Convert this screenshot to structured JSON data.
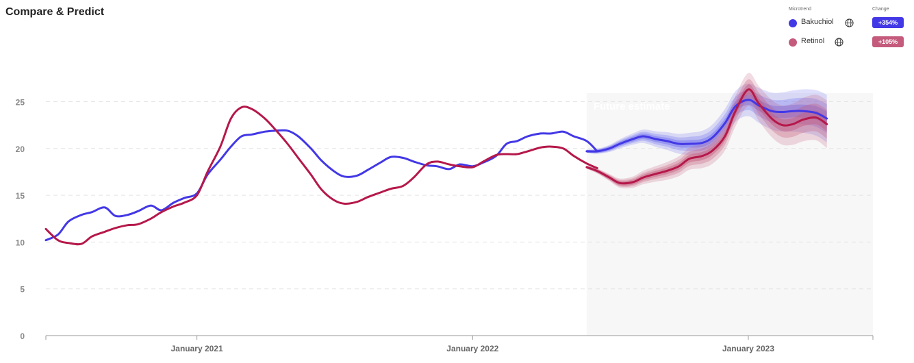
{
  "title": "Compare & Predict",
  "legend": {
    "col_trend": "Microtrend",
    "col_change": "Change",
    "items": [
      {
        "name": "Bakuchiol",
        "change": "+354%",
        "color": "#4338e6",
        "icon": "globe-icon"
      },
      {
        "name": "Retinol",
        "change": "+105%",
        "color": "#c45a7c",
        "icon": "globe-icon"
      }
    ]
  },
  "chart_data": {
    "type": "line",
    "title": "",
    "xlabel": "",
    "ylabel": "",
    "ylim": [
      0,
      25
    ],
    "yticks": [
      "0",
      "5",
      "10",
      "15",
      "20",
      "25"
    ],
    "xtick_labels": [
      "January 2021",
      "January 2022",
      "January 2023"
    ],
    "xtick_dates": [
      "2021-01-01",
      "2022-01-01",
      "2023-01-01"
    ],
    "xrange": [
      "2020-06-15",
      "2023-06-15"
    ],
    "grid": true,
    "future_estimate": {
      "label": "Future estimate",
      "start": "2022-06-01"
    },
    "series": [
      {
        "name": "Bakuchiol",
        "color": "#4338e6",
        "band_color": "#6e6ef0",
        "points": [
          [
            "2020-06-15",
            10.2
          ],
          [
            "2020-07-01",
            10.8
          ],
          [
            "2020-07-15",
            12.2
          ],
          [
            "2020-08-01",
            12.9
          ],
          [
            "2020-08-15",
            13.2
          ],
          [
            "2020-09-01",
            13.7
          ],
          [
            "2020-09-15",
            12.8
          ],
          [
            "2020-10-01",
            12.9
          ],
          [
            "2020-10-15",
            13.3
          ],
          [
            "2020-11-01",
            13.9
          ],
          [
            "2020-11-15",
            13.4
          ],
          [
            "2020-12-01",
            14.2
          ],
          [
            "2020-12-15",
            14.7
          ],
          [
            "2021-01-01",
            15.2
          ],
          [
            "2021-01-15",
            17.2
          ],
          [
            "2021-02-01",
            18.8
          ],
          [
            "2021-02-15",
            20.2
          ],
          [
            "2021-03-01",
            21.3
          ],
          [
            "2021-03-15",
            21.5
          ],
          [
            "2021-04-01",
            21.8
          ],
          [
            "2021-04-15",
            21.9
          ],
          [
            "2021-05-01",
            21.9
          ],
          [
            "2021-05-15",
            21.3
          ],
          [
            "2021-06-01",
            20.0
          ],
          [
            "2021-06-15",
            18.7
          ],
          [
            "2021-07-01",
            17.6
          ],
          [
            "2021-07-15",
            17.0
          ],
          [
            "2021-08-01",
            17.1
          ],
          [
            "2021-08-15",
            17.7
          ],
          [
            "2021-09-01",
            18.5
          ],
          [
            "2021-09-15",
            19.1
          ],
          [
            "2021-10-01",
            19.0
          ],
          [
            "2021-10-15",
            18.6
          ],
          [
            "2021-11-01",
            18.2
          ],
          [
            "2021-11-15",
            18.1
          ],
          [
            "2021-12-01",
            17.8
          ],
          [
            "2021-12-15",
            18.3
          ],
          [
            "2022-01-01",
            18.1
          ],
          [
            "2022-01-15",
            18.5
          ],
          [
            "2022-02-01",
            19.2
          ],
          [
            "2022-02-15",
            20.5
          ],
          [
            "2022-03-01",
            20.8
          ],
          [
            "2022-03-15",
            21.3
          ],
          [
            "2022-04-01",
            21.6
          ],
          [
            "2022-04-15",
            21.6
          ],
          [
            "2022-05-01",
            21.8
          ],
          [
            "2022-05-15",
            21.3
          ],
          [
            "2022-06-01",
            20.8
          ],
          [
            "2022-06-15",
            19.7
          ]
        ],
        "forecast": [
          [
            "2022-06-01",
            19.7
          ],
          [
            "2022-06-15",
            19.7
          ],
          [
            "2022-07-01",
            20.0
          ],
          [
            "2022-07-15",
            20.5
          ],
          [
            "2022-08-01",
            21.0
          ],
          [
            "2022-08-15",
            21.3
          ],
          [
            "2022-09-01",
            21.0
          ],
          [
            "2022-09-15",
            20.8
          ],
          [
            "2022-10-01",
            20.5
          ],
          [
            "2022-10-15",
            20.5
          ],
          [
            "2022-11-01",
            20.6
          ],
          [
            "2022-11-15",
            21.2
          ],
          [
            "2022-12-01",
            22.7
          ],
          [
            "2022-12-15",
            24.5
          ],
          [
            "2023-01-01",
            25.2
          ],
          [
            "2023-01-15",
            24.6
          ],
          [
            "2023-02-01",
            24.0
          ],
          [
            "2023-02-15",
            23.9
          ],
          [
            "2023-03-01",
            24.0
          ],
          [
            "2023-03-15",
            24.0
          ],
          [
            "2023-04-01",
            23.8
          ],
          [
            "2023-04-15",
            23.2
          ]
        ]
      },
      {
        "name": "Retinol",
        "color": "#b5184a",
        "band_color": "#c45a7c",
        "points": [
          [
            "2020-06-15",
            11.4
          ],
          [
            "2020-07-01",
            10.2
          ],
          [
            "2020-07-15",
            9.9
          ],
          [
            "2020-08-01",
            9.8
          ],
          [
            "2020-08-15",
            10.6
          ],
          [
            "2020-09-01",
            11.1
          ],
          [
            "2020-09-15",
            11.5
          ],
          [
            "2020-10-01",
            11.8
          ],
          [
            "2020-10-15",
            11.9
          ],
          [
            "2020-11-01",
            12.5
          ],
          [
            "2020-11-15",
            13.2
          ],
          [
            "2020-12-01",
            13.8
          ],
          [
            "2020-12-15",
            14.2
          ],
          [
            "2021-01-01",
            15.0
          ],
          [
            "2021-01-15",
            17.5
          ],
          [
            "2021-02-01",
            20.2
          ],
          [
            "2021-02-15",
            23.2
          ],
          [
            "2021-03-01",
            24.4
          ],
          [
            "2021-03-15",
            24.2
          ],
          [
            "2021-04-01",
            23.2
          ],
          [
            "2021-04-15",
            22.0
          ],
          [
            "2021-05-01",
            20.5
          ],
          [
            "2021-05-15",
            19.0
          ],
          [
            "2021-06-01",
            17.2
          ],
          [
            "2021-06-15",
            15.6
          ],
          [
            "2021-07-01",
            14.5
          ],
          [
            "2021-07-15",
            14.1
          ],
          [
            "2021-08-01",
            14.3
          ],
          [
            "2021-08-15",
            14.8
          ],
          [
            "2021-09-01",
            15.3
          ],
          [
            "2021-09-15",
            15.7
          ],
          [
            "2021-10-01",
            16.0
          ],
          [
            "2021-10-15",
            16.9
          ],
          [
            "2021-11-01",
            18.3
          ],
          [
            "2021-11-15",
            18.6
          ],
          [
            "2021-12-01",
            18.3
          ],
          [
            "2021-12-15",
            18.1
          ],
          [
            "2022-01-01",
            18.0
          ],
          [
            "2022-01-15",
            18.6
          ],
          [
            "2022-02-01",
            19.3
          ],
          [
            "2022-02-15",
            19.4
          ],
          [
            "2022-03-01",
            19.4
          ],
          [
            "2022-03-15",
            19.7
          ],
          [
            "2022-04-01",
            20.1
          ],
          [
            "2022-04-15",
            20.2
          ],
          [
            "2022-05-01",
            20.0
          ],
          [
            "2022-05-15",
            19.2
          ],
          [
            "2022-06-01",
            18.4
          ],
          [
            "2022-06-15",
            17.9
          ]
        ],
        "forecast": [
          [
            "2022-06-01",
            18.0
          ],
          [
            "2022-06-15",
            17.6
          ],
          [
            "2022-07-01",
            16.9
          ],
          [
            "2022-07-15",
            16.3
          ],
          [
            "2022-08-01",
            16.4
          ],
          [
            "2022-08-15",
            16.9
          ],
          [
            "2022-09-01",
            17.3
          ],
          [
            "2022-09-15",
            17.6
          ],
          [
            "2022-10-01",
            18.1
          ],
          [
            "2022-10-15",
            18.9
          ],
          [
            "2022-11-01",
            19.2
          ],
          [
            "2022-11-15",
            19.8
          ],
          [
            "2022-12-01",
            21.3
          ],
          [
            "2022-12-15",
            24.0
          ],
          [
            "2023-01-01",
            26.3
          ],
          [
            "2023-01-15",
            24.8
          ],
          [
            "2023-02-01",
            23.2
          ],
          [
            "2023-02-15",
            22.5
          ],
          [
            "2023-03-01",
            22.6
          ],
          [
            "2023-03-15",
            23.1
          ],
          [
            "2023-04-01",
            23.3
          ],
          [
            "2023-04-15",
            22.6
          ]
        ]
      }
    ]
  }
}
